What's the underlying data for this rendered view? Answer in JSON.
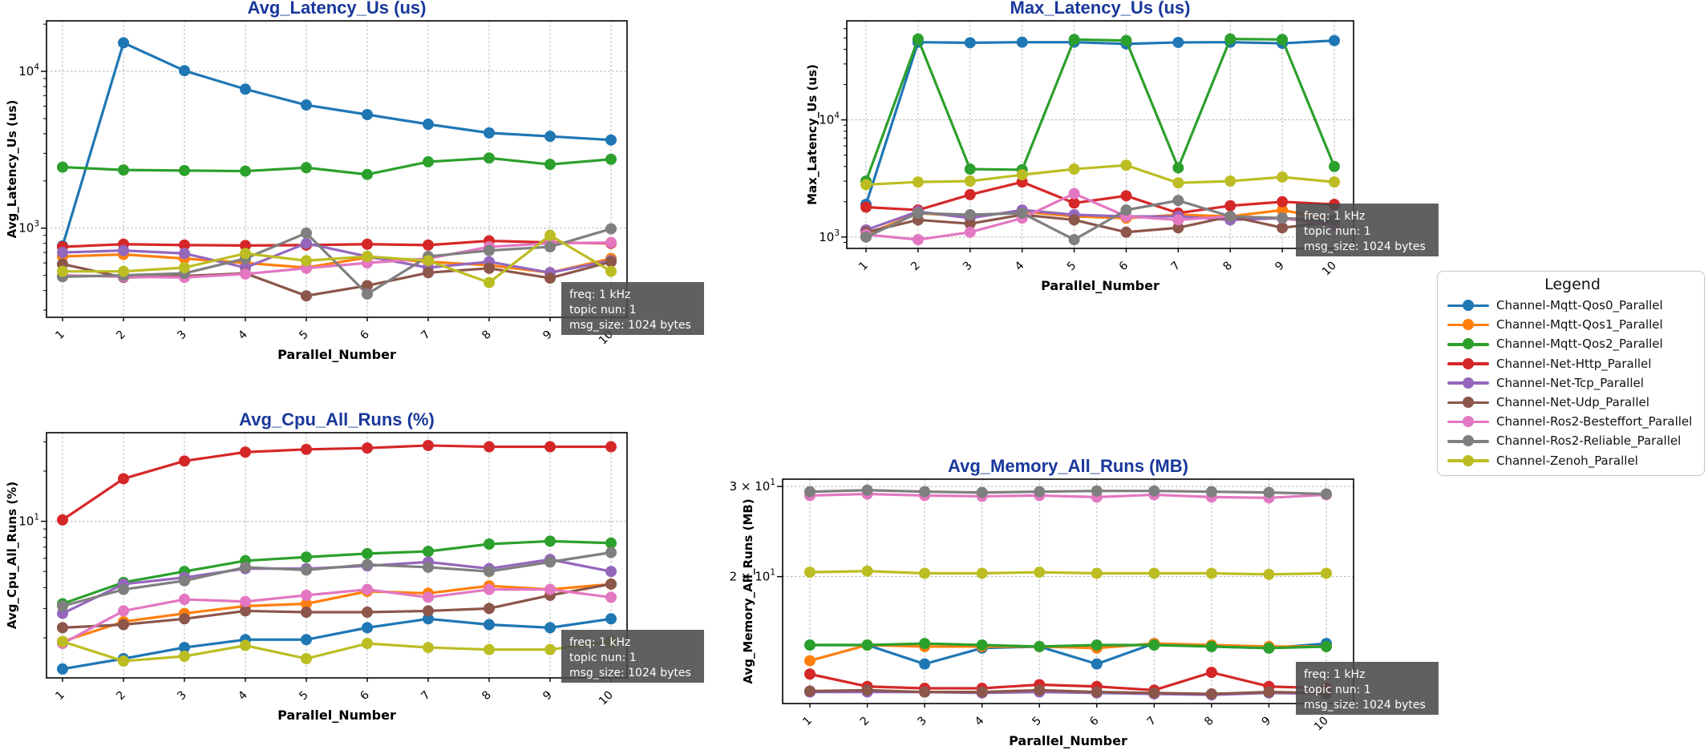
{
  "style": {
    "title_color": "#19389b",
    "grid_color": "#b3b3b3",
    "axis_color": "#000000",
    "annotation_bg": "#4a4a4a",
    "annotation_text_color": "#ffffff"
  },
  "annotation": {
    "lines": [
      "freq: 1 kHz",
      "topic nun: 1",
      "msg_size: 1024 bytes"
    ]
  },
  "x_axis": {
    "label": "Parallel_Number",
    "ticks": [
      "1",
      "2",
      "3",
      "4",
      "5",
      "6",
      "7",
      "8",
      "9",
      "10"
    ]
  },
  "legend": {
    "title": "Legend",
    "position": "right-center-outside",
    "entries": [
      {
        "label": "Channel-Mqtt-Qos0_Parallel",
        "color": "#1f77b4"
      },
      {
        "label": "Channel-Mqtt-Qos1_Parallel",
        "color": "#ff7f0e"
      },
      {
        "label": "Channel-Mqtt-Qos2_Parallel",
        "color": "#2ca02c"
      },
      {
        "label": "Channel-Net-Http_Parallel",
        "color": "#d62728"
      },
      {
        "label": "Channel-Net-Tcp_Parallel",
        "color": "#9467bd"
      },
      {
        "label": "Channel-Net-Udp_Parallel",
        "color": "#8c564b"
      },
      {
        "label": "Channel-Ros2-Besteffort_Parallel",
        "color": "#e377c2"
      },
      {
        "label": "Channel-Ros2-Reliable_Parallel",
        "color": "#7f7f7f"
      },
      {
        "label": "Channel-Zenoh_Parallel",
        "color": "#bcbd22"
      }
    ]
  },
  "chart_data": [
    {
      "type": "line",
      "title": "Avg_Latency_Us  (us)",
      "ylabel": "Avg_Latency_Us (us)",
      "xlabel": "Parallel_Number",
      "yscale": "log",
      "grid": true,
      "x": [
        1,
        2,
        3,
        4,
        5,
        6,
        7,
        8,
        9,
        10
      ],
      "ylim": [
        270,
        21000
      ],
      "yticks": [
        {
          "value": 1000,
          "prefix": "",
          "exponent": "3"
        },
        {
          "value": 10000,
          "prefix": "",
          "exponent": "4"
        }
      ],
      "series": [
        {
          "name": "Channel-Mqtt-Qos0_Parallel",
          "color": "#1f77b4",
          "values": [
            770,
            15200,
            10100,
            7700,
            6100,
            5300,
            4600,
            4050,
            3850,
            3650
          ]
        },
        {
          "name": "Channel-Mqtt-Qos1_Parallel",
          "color": "#ff7f0e",
          "values": [
            660,
            680,
            640,
            600,
            560,
            650,
            610,
            580,
            520,
            640
          ]
        },
        {
          "name": "Channel-Mqtt-Qos2_Parallel",
          "color": "#2ca02c",
          "values": [
            2450,
            2350,
            2330,
            2310,
            2430,
            2200,
            2650,
            2800,
            2550,
            2750
          ]
        },
        {
          "name": "Channel-Net-Http_Parallel",
          "color": "#d62728",
          "values": [
            760,
            790,
            780,
            775,
            780,
            790,
            780,
            830,
            810,
            800
          ]
        },
        {
          "name": "Channel-Net-Tcp_Parallel",
          "color": "#9467bd",
          "values": [
            700,
            720,
            690,
            560,
            800,
            660,
            560,
            610,
            520,
            620
          ]
        },
        {
          "name": "Channel-Net-Udp_Parallel",
          "color": "#8c564b",
          "values": [
            590,
            485,
            495,
            515,
            370,
            430,
            520,
            555,
            480,
            610
          ]
        },
        {
          "name": "Channel-Ros2-Besteffort_Parallel",
          "color": "#e377c2",
          "values": [
            500,
            490,
            485,
            510,
            555,
            600,
            640,
            760,
            800,
            810
          ]
        },
        {
          "name": "Channel-Ros2-Reliable_Parallel",
          "color": "#7f7f7f",
          "values": [
            490,
            500,
            515,
            640,
            930,
            380,
            660,
            720,
            760,
            990
          ]
        },
        {
          "name": "Channel-Zenoh_Parallel",
          "color": "#bcbd22",
          "values": [
            530,
            530,
            560,
            690,
            620,
            660,
            620,
            450,
            900,
            530
          ]
        }
      ]
    },
    {
      "type": "line",
      "title": "Max_Latency_Us  (us)",
      "ylabel": "Max_Latency_Us (us)",
      "xlabel": "Parallel_Number",
      "yscale": "log",
      "grid": true,
      "x": [
        1,
        2,
        3,
        4,
        5,
        6,
        7,
        8,
        9,
        10
      ],
      "ylim": [
        800,
        70000
      ],
      "yticks": [
        {
          "value": 1000,
          "prefix": "",
          "exponent": "3"
        },
        {
          "value": 10000,
          "prefix": "",
          "exponent": "4"
        }
      ],
      "series": [
        {
          "name": "Channel-Mqtt-Qos0_Parallel",
          "color": "#1f77b4",
          "values": [
            1900,
            46000,
            45500,
            46000,
            46000,
            44500,
            45800,
            46000,
            45000,
            47500
          ]
        },
        {
          "name": "Channel-Mqtt-Qos1_Parallel",
          "color": "#ff7f0e",
          "values": [
            1050,
            1600,
            1500,
            1650,
            1500,
            1450,
            1550,
            1500,
            1700,
            1400
          ]
        },
        {
          "name": "Channel-Mqtt-Qos2_Parallel",
          "color": "#2ca02c",
          "values": [
            3000,
            49000,
            3800,
            3750,
            48500,
            47500,
            3900,
            49000,
            48500,
            4000
          ]
        },
        {
          "name": "Channel-Net-Http_Parallel",
          "color": "#d62728",
          "values": [
            1800,
            1700,
            2300,
            2950,
            1950,
            2250,
            1600,
            1850,
            2000,
            1900
          ]
        },
        {
          "name": "Channel-Net-Tcp_Parallel",
          "color": "#9467bd",
          "values": [
            1150,
            1650,
            1450,
            1700,
            1550,
            1500,
            1500,
            1400,
            1450,
            1300
          ]
        },
        {
          "name": "Channel-Net-Udp_Parallel",
          "color": "#8c564b",
          "values": [
            1100,
            1400,
            1300,
            1550,
            1400,
            1100,
            1200,
            1500,
            1200,
            1350
          ]
        },
        {
          "name": "Channel-Ros2-Besteffort_Parallel",
          "color": "#e377c2",
          "values": [
            1050,
            950,
            1100,
            1450,
            2350,
            1500,
            1400,
            1500,
            1450,
            1250
          ]
        },
        {
          "name": "Channel-Ros2-Reliable_Parallel",
          "color": "#7f7f7f",
          "values": [
            1000,
            1600,
            1550,
            1600,
            950,
            1700,
            2050,
            1500,
            1450,
            1400
          ]
        },
        {
          "name": "Channel-Zenoh_Parallel",
          "color": "#bcbd22",
          "values": [
            2800,
            2950,
            3000,
            3400,
            3800,
            4100,
            2900,
            3000,
            3250,
            2950
          ]
        }
      ]
    },
    {
      "type": "line",
      "title": "Avg_Cpu_All_Runs  (%)",
      "ylabel": "Avg_Cpu_All_Runs (%)",
      "xlabel": "Parallel_Number",
      "yscale": "log",
      "grid": true,
      "x": [
        1,
        2,
        3,
        4,
        5,
        6,
        7,
        8,
        9,
        10
      ],
      "ylim": [
        1.15,
        34
      ],
      "yticks": [
        {
          "value": 10,
          "prefix": "",
          "exponent": "1"
        }
      ],
      "series": [
        {
          "name": "Channel-Mqtt-Qos0_Parallel",
          "color": "#1f77b4",
          "values": [
            1.3,
            1.5,
            1.75,
            1.95,
            1.95,
            2.3,
            2.6,
            2.4,
            2.3,
            2.6
          ]
        },
        {
          "name": "Channel-Mqtt-Qos1_Parallel",
          "color": "#ff7f0e",
          "values": [
            1.9,
            2.5,
            2.8,
            3.1,
            3.2,
            3.8,
            3.7,
            4.1,
            3.9,
            4.2
          ]
        },
        {
          "name": "Channel-Mqtt-Qos2_Parallel",
          "color": "#2ca02c",
          "values": [
            3.2,
            4.3,
            5.0,
            5.8,
            6.1,
            6.4,
            6.6,
            7.3,
            7.6,
            7.4
          ]
        },
        {
          "name": "Channel-Net-Http_Parallel",
          "color": "#d62728",
          "values": [
            10.2,
            18,
            23,
            26,
            27,
            27.5,
            28.5,
            28,
            28,
            28
          ]
        },
        {
          "name": "Channel-Net-Tcp_Parallel",
          "color": "#9467bd",
          "values": [
            2.8,
            4.2,
            4.6,
            5.2,
            5.2,
            5.4,
            5.7,
            5.2,
            5.9,
            5.0
          ]
        },
        {
          "name": "Channel-Net-Udp_Parallel",
          "color": "#8c564b",
          "values": [
            2.3,
            2.4,
            2.6,
            2.9,
            2.85,
            2.85,
            2.9,
            3.0,
            3.6,
            4.2
          ]
        },
        {
          "name": "Channel-Ros2-Besteffort_Parallel",
          "color": "#e377c2",
          "values": [
            1.85,
            2.9,
            3.4,
            3.3,
            3.6,
            3.9,
            3.5,
            3.9,
            3.9,
            3.5
          ]
        },
        {
          "name": "Channel-Ros2-Reliable_Parallel",
          "color": "#7f7f7f",
          "values": [
            3.1,
            3.9,
            4.4,
            5.3,
            5.1,
            5.5,
            5.3,
            5.0,
            5.7,
            6.5
          ]
        },
        {
          "name": "Channel-Zenoh_Parallel",
          "color": "#bcbd22",
          "values": [
            1.9,
            1.45,
            1.55,
            1.8,
            1.5,
            1.85,
            1.75,
            1.7,
            1.7,
            1.9
          ]
        }
      ]
    },
    {
      "type": "line",
      "title": "Avg_Memory_All_Runs  (MB)",
      "ylabel": "Avg_Memory_All_Runs (MB)",
      "xlabel": "Parallel_Number",
      "yscale": "log",
      "grid": true,
      "x": [
        1,
        2,
        3,
        4,
        5,
        6,
        7,
        8,
        9,
        10
      ],
      "ylim": [
        11.3,
        31
      ],
      "yticks": [
        {
          "value": 20,
          "prefix": "2 × ",
          "exponent": "1"
        },
        {
          "value": 30,
          "prefix": "3 × ",
          "exponent": "1"
        }
      ],
      "series": [
        {
          "name": "Channel-Mqtt-Qos0_Parallel",
          "color": "#1f77b4",
          "values": [
            14.7,
            14.7,
            13.5,
            14.5,
            14.6,
            13.5,
            14.8,
            14.6,
            14.5,
            14.8
          ]
        },
        {
          "name": "Channel-Mqtt-Qos1_Parallel",
          "color": "#ff7f0e",
          "values": [
            13.7,
            14.7,
            14.6,
            14.6,
            14.6,
            14.5,
            14.8,
            14.7,
            14.6,
            14.6
          ]
        },
        {
          "name": "Channel-Mqtt-Qos2_Parallel",
          "color": "#2ca02c",
          "values": [
            14.7,
            14.7,
            14.8,
            14.7,
            14.6,
            14.7,
            14.7,
            14.6,
            14.5,
            14.6
          ]
        },
        {
          "name": "Channel-Net-Http_Parallel",
          "color": "#d62728",
          "values": [
            12.9,
            12.2,
            12.1,
            12.1,
            12.3,
            12.2,
            12.0,
            13.0,
            12.2,
            12.1
          ]
        },
        {
          "name": "Channel-Net-Tcp_Parallel",
          "color": "#9467bd",
          "values": [
            11.9,
            11.9,
            11.9,
            11.85,
            11.9,
            11.85,
            11.8,
            11.75,
            11.85,
            11.8
          ]
        },
        {
          "name": "Channel-Net-Udp_Parallel",
          "color": "#8c564b",
          "values": [
            11.95,
            12.0,
            11.9,
            11.9,
            12.0,
            11.9,
            11.85,
            11.8,
            11.9,
            11.85
          ]
        },
        {
          "name": "Channel-Ros2-Besteffort_Parallel",
          "color": "#e377c2",
          "values": [
            28.8,
            29.0,
            28.8,
            28.7,
            28.8,
            28.6,
            28.9,
            28.6,
            28.5,
            28.9
          ]
        },
        {
          "name": "Channel-Ros2-Reliable_Parallel",
          "color": "#7f7f7f",
          "values": [
            29.3,
            29.5,
            29.3,
            29.2,
            29.3,
            29.4,
            29.4,
            29.3,
            29.2,
            29.0
          ]
        },
        {
          "name": "Channel-Zenoh_Parallel",
          "color": "#bcbd22",
          "values": [
            20.4,
            20.5,
            20.3,
            20.3,
            20.4,
            20.3,
            20.3,
            20.3,
            20.2,
            20.3
          ]
        }
      ]
    }
  ]
}
